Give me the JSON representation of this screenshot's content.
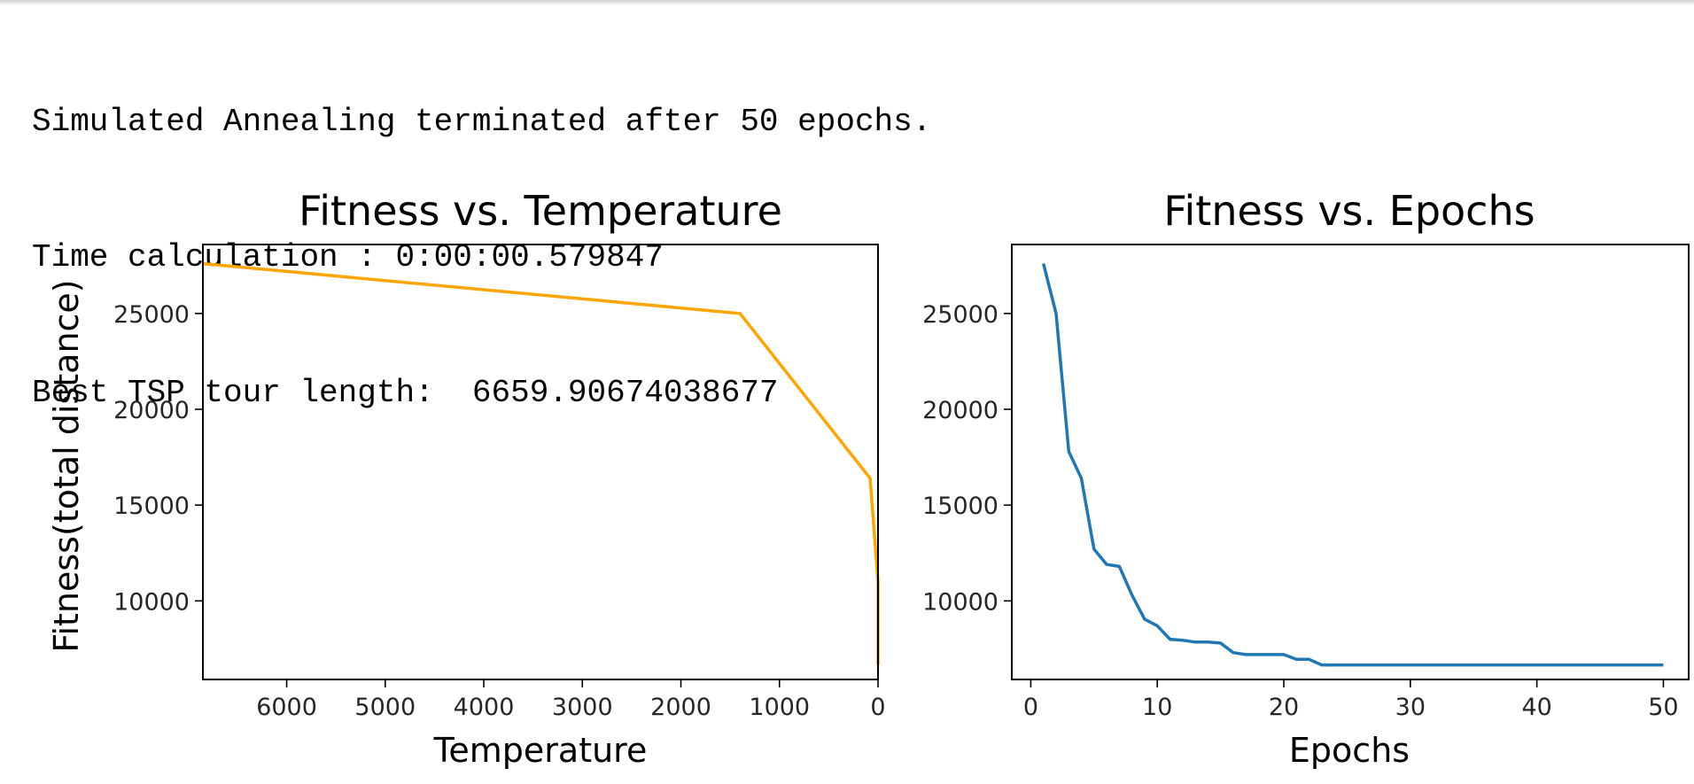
{
  "console": {
    "lines": [
      "Simulated Annealing terminated after 50 epochs.",
      "Time calculation : 0:00:00.579847",
      "Best TSP tour length:  6659.90674038677"
    ]
  },
  "chart_data": [
    {
      "type": "line",
      "title": "Fitness vs. Temperature",
      "xlabel": "Temperature",
      "ylabel": "Fitness(total distance)",
      "xlim": [
        6850,
        0
      ],
      "ylim": [
        5900,
        28600
      ],
      "xticks": [
        6000,
        5000,
        4000,
        3000,
        2000,
        1000,
        0
      ],
      "yticks": [
        10000,
        15000,
        20000,
        25000
      ],
      "color": "#ffa500",
      "x": [
        6850,
        1400,
        80,
        0,
        0
      ],
      "y": [
        27600,
        25000,
        16400,
        11000,
        6660
      ]
    },
    {
      "type": "line",
      "title": "Fitness vs. Epochs",
      "xlabel": "Epochs",
      "ylabel": "",
      "xlim": [
        -1.5,
        52
      ],
      "ylim": [
        5900,
        28600
      ],
      "xticks": [
        0,
        10,
        20,
        30,
        40,
        50
      ],
      "yticks": [
        10000,
        15000,
        20000,
        25000
      ],
      "color": "#1f77b4",
      "x": [
        1,
        2,
        3,
        4,
        5,
        6,
        7,
        8,
        9,
        10,
        11,
        12,
        13,
        14,
        15,
        16,
        17,
        18,
        19,
        20,
        21,
        22,
        23,
        24,
        25,
        26,
        27,
        28,
        29,
        30,
        31,
        32,
        33,
        34,
        35,
        36,
        37,
        38,
        39,
        40,
        41,
        42,
        43,
        44,
        45,
        46,
        47,
        48,
        49,
        50
      ],
      "y": [
        27600,
        25000,
        17800,
        16400,
        12700,
        11900,
        11800,
        10300,
        9050,
        8700,
        8000,
        7950,
        7850,
        7850,
        7800,
        7300,
        7200,
        7200,
        7200,
        7200,
        6950,
        6950,
        6660,
        6660,
        6660,
        6660,
        6660,
        6660,
        6660,
        6660,
        6660,
        6660,
        6660,
        6660,
        6660,
        6660,
        6660,
        6660,
        6660,
        6660,
        6660,
        6660,
        6660,
        6660,
        6660,
        6660,
        6660,
        6660,
        6660,
        6660
      ]
    }
  ]
}
